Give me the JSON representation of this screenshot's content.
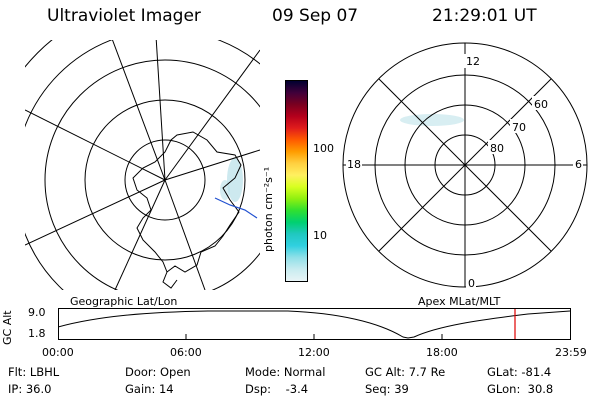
{
  "header": {
    "instrument": "Ultraviolet Imager",
    "date": "09 Sep 07",
    "time": "21:29:01 UT"
  },
  "colorbar": {
    "unit_label": "photon cm⁻²s⁻¹",
    "ticks": [
      "100",
      "10"
    ],
    "scale": "log",
    "colors": [
      "#000030",
      "#40003a",
      "#7a0020",
      "#b4001c",
      "#e01c1c",
      "#ff5a00",
      "#ff9c00",
      "#ffd040",
      "#fff060",
      "#d8ff20",
      "#90f010",
      "#30e030",
      "#00d070",
      "#20c8c0",
      "#30d0e0",
      "#90e0e8",
      "#c8ecf0",
      "#e8f4f6"
    ]
  },
  "geo_map": {
    "label": "Geographic Lat/Lon",
    "land_color": "#ffffff",
    "aurora_color": "#b8e0e8",
    "terminator_color": "#2050d0"
  },
  "polar_plot": {
    "label": "Apex MLat/MLT",
    "mlt_labels": {
      "top": "12",
      "left": "18",
      "right": "6",
      "bottom": "0"
    },
    "lat_labels": [
      "60",
      "70",
      "80"
    ]
  },
  "altitude_plot": {
    "ylabel": "GC Alt",
    "yticks": [
      "9.0",
      "1.8"
    ],
    "xticks": [
      "00:00",
      "06:00",
      "12:00",
      "18:00",
      "23:59"
    ],
    "marker_color": "#e00000"
  },
  "footer": {
    "filter": "Flt: LBHL",
    "door": "Door: Open",
    "mode": "Mode: Normal",
    "gc_alt": "GC Alt: 7.7 Re",
    "glat": "GLat: -81.4",
    "ip": "IP: 36.0",
    "gain": "Gain: 14",
    "dsp": "Dsp:    -3.4",
    "seq": "Seq: 39",
    "glon": "GLon:  30.8"
  }
}
